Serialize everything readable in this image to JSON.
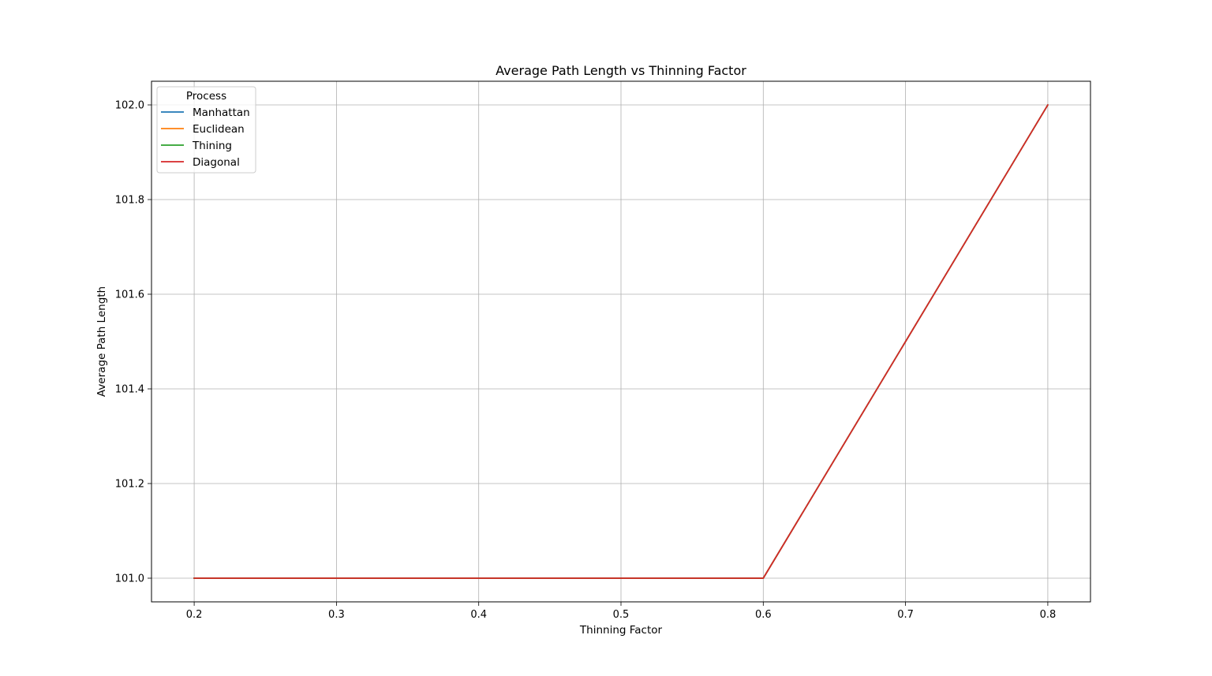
{
  "chart_data": {
    "type": "line",
    "title": "Average Path Length vs Thinning Factor",
    "xlabel": "Thinning Factor",
    "ylabel": "Average Path Length",
    "xlim": [
      0.17,
      0.83
    ],
    "ylim": [
      100.95,
      102.05
    ],
    "xticks": [
      0.2,
      0.3,
      0.4,
      0.5,
      0.6,
      0.7,
      0.8
    ],
    "xtick_labels": [
      "0.2",
      "0.3",
      "0.4",
      "0.5",
      "0.6",
      "0.7",
      "0.8"
    ],
    "yticks": [
      101.0,
      101.2,
      101.4,
      101.6,
      101.8,
      102.0
    ],
    "ytick_labels": [
      "101.0",
      "101.2",
      "101.4",
      "101.6",
      "101.8",
      "102.0"
    ],
    "grid": true,
    "legend": {
      "title": "Process",
      "placement": "top-left"
    },
    "x": [
      0.2,
      0.4,
      0.6,
      0.8
    ],
    "series": [
      {
        "name": "Manhattan",
        "color": "#1f77b4",
        "values": [
          101.0,
          101.0,
          101.0,
          102.0
        ]
      },
      {
        "name": "Euclidean",
        "color": "#ff7f0e",
        "values": [
          101.0,
          101.0,
          101.0,
          102.0
        ]
      },
      {
        "name": "Thining",
        "color": "#2ca02c",
        "values": [
          101.0,
          101.0,
          101.0,
          102.0
        ]
      },
      {
        "name": "Diagonal",
        "color": "#d62728",
        "values": [
          101.0,
          101.0,
          101.0,
          102.0
        ]
      }
    ]
  }
}
